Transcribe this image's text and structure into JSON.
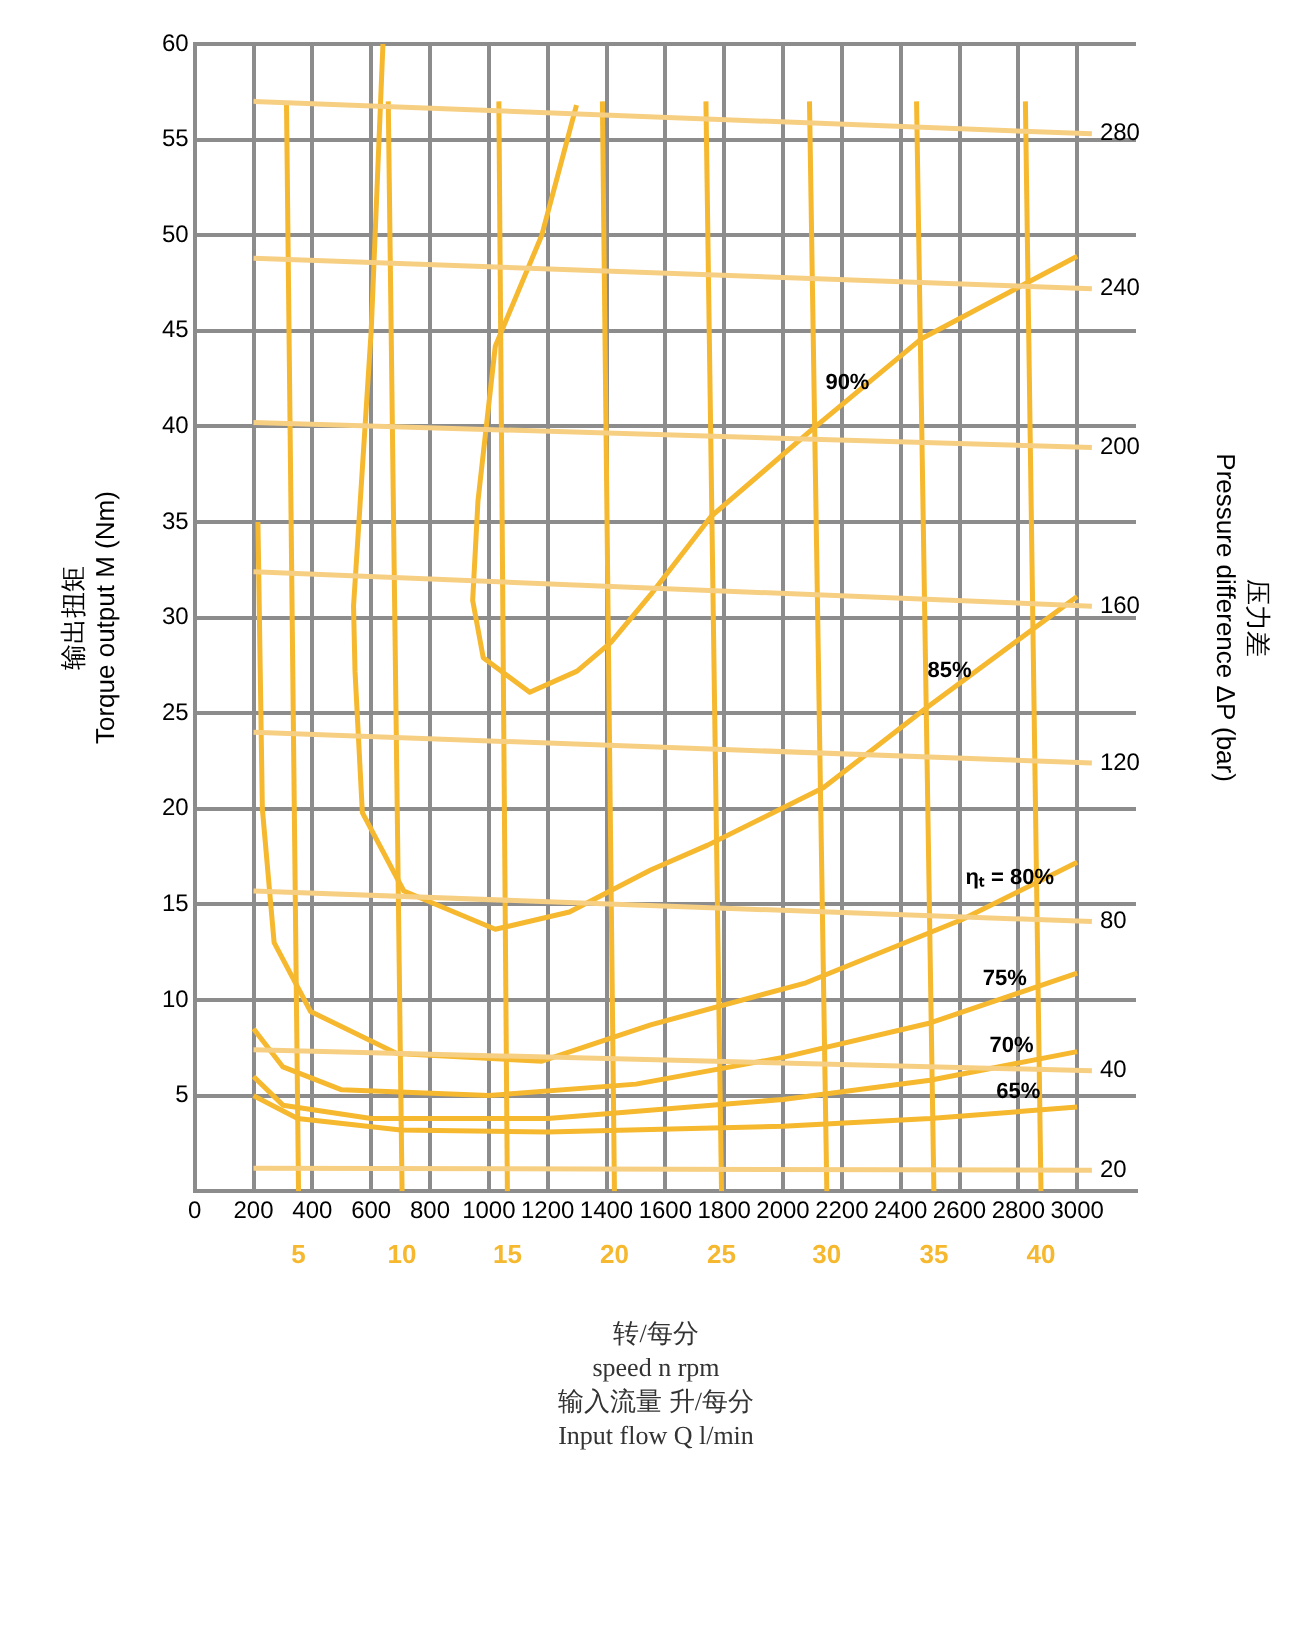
{
  "chart_data": {
    "type": "line",
    "xlabel": "转/每分\nspeed n rpm\n输入流量  升/每分\nInput flow Q l/min",
    "ylabel": "输出扭矩\nTorque output M (Nm)",
    "y2label": "压力差\nPressure difference ΔP (bar)",
    "xlim": [
      0,
      3200
    ],
    "xticks": [
      0,
      200,
      400,
      600,
      800,
      1000,
      1200,
      1400,
      1600,
      1800,
      2000,
      2200,
      2400,
      2600,
      2800,
      3000
    ],
    "ylim": [
      0,
      60
    ],
    "yticks": [
      5,
      10,
      15,
      20,
      25,
      30,
      35,
      40,
      45,
      50,
      55,
      60
    ],
    "grid": true,
    "legend": false,
    "marker": "none",
    "line_style": "solid",
    "series": [
      {
        "name": "280",
        "color": "#f7cf83",
        "x": [
          200,
          3050
        ],
        "values": [
          57,
          55.3
        ]
      },
      {
        "name": "240",
        "type": "line",
        "color": "#f7cf83",
        "x": [
          200,
          3050
        ],
        "values": [
          48.8,
          47.2
        ]
      },
      {
        "name": "200",
        "type": "line",
        "color": "#f7cf83",
        "x": [
          200,
          3050
        ],
        "values": [
          40.2,
          38.9
        ]
      },
      {
        "name": "160",
        "type": "line",
        "color": "#f7cf83",
        "x": [
          200,
          3050
        ],
        "values": [
          32.4,
          30.6
        ]
      },
      {
        "name": "120",
        "type": "line",
        "color": "#f7cf83",
        "x": [
          200,
          3050
        ],
        "values": [
          24,
          22.4
        ]
      },
      {
        "name": "80",
        "type": "line",
        "color": "#f7cf83",
        "x": [
          200,
          3050
        ],
        "values": [
          15.7,
          14.1
        ]
      },
      {
        "name": "40",
        "type": "line",
        "color": "#f7cf83",
        "x": [
          200,
          3050
        ],
        "values": [
          7.4,
          6.3
        ]
      },
      {
        "name": "20",
        "type": "line",
        "color": "#f7cf83",
        "x": [
          200,
          3050
        ],
        "values": [
          1.2,
          1.1
        ]
      },
      {
        "name": "5",
        "type": "line",
        "color": "#f5b82e",
        "x": [
          312,
          353
        ],
        "values": [
          57,
          0
        ]
      },
      {
        "name": "10",
        "type": "line",
        "color": "#f5b82e",
        "x": [
          658,
          705
        ],
        "values": [
          57,
          0
        ]
      },
      {
        "name": "15",
        "type": "line",
        "color": "#f5b82e",
        "x": [
          1034,
          1063
        ],
        "values": [
          57,
          0
        ]
      },
      {
        "name": "20",
        "type": "line",
        "color": "#f5b82e",
        "x": [
          1386,
          1427
        ],
        "values": [
          57,
          0
        ]
      },
      {
        "name": "25",
        "type": "line",
        "color": "#f5b82e",
        "x": [
          1738,
          1791
        ],
        "values": [
          57,
          0
        ]
      },
      {
        "name": "30",
        "type": "line",
        "color": "#f5b82e",
        "x": [
          2090,
          2149
        ],
        "values": [
          57,
          0
        ]
      },
      {
        "name": "35",
        "type": "line",
        "color": "#f5b82e",
        "x": [
          2454,
          2513
        ],
        "values": [
          57,
          0
        ]
      },
      {
        "name": "40",
        "type": "line",
        "color": "#f5b82e",
        "x": [
          2824,
          2877
        ],
        "values": [
          57,
          0
        ]
      },
      {
        "type": "line",
        "color": "#f5b82e",
        "x": [
          1298,
          1180,
          1022,
          963,
          945,
          981,
          1139,
          1300,
          1415,
          1550,
          1756,
          2096,
          2472,
          3000
        ],
        "values": [
          56.8,
          50,
          44.2,
          36.1,
          30.9,
          27.9,
          26.1,
          27.2,
          28.7,
          31.2,
          35.3,
          39.8,
          44.6,
          48.9
        ]
      },
      {
        "type": "line",
        "color": "#f5b82e",
        "x": [
          640,
          600,
          540,
          545,
          570,
          711,
          1022,
          1274,
          1550,
          1744,
          2137,
          2489,
          3000
        ],
        "values": [
          60,
          45,
          30.6,
          27.2,
          19.8,
          15.7,
          13.7,
          14.6,
          16.8,
          18.1,
          21.1,
          25.3,
          31.1
        ]
      },
      {
        "type": "line",
        "color": "#f5b82e",
        "x": [
          215,
          230,
          270,
          394,
          687,
          1180,
          1550,
          2078,
          2607,
          3000
        ],
        "values": [
          35,
          20,
          13,
          9.4,
          7.2,
          6.8,
          8.7,
          10.9,
          14.2,
          17.2
        ]
      },
      {
        "type": "line",
        "color": "#f5b82e",
        "x": [
          200,
          300,
          500,
          1000,
          1500,
          2000,
          2500,
          3000
        ],
        "values": [
          8.5,
          6.5,
          5.3,
          5,
          5.6,
          7,
          8.8,
          11.4
        ]
      },
      {
        "type": "line",
        "color": "#f5b82e",
        "x": [
          200,
          300,
          600,
          1200,
          2000,
          2500,
          3000
        ],
        "values": [
          6,
          4.5,
          3.8,
          3.8,
          4.8,
          5.8,
          7.3
        ]
      },
      {
        "type": "line",
        "color": "#f5b82e",
        "x": [
          200,
          350,
          700,
          1200,
          2000,
          2500,
          3000
        ],
        "values": [
          5,
          3.8,
          3.2,
          3.1,
          3.4,
          3.8,
          4.4
        ]
      }
    ],
    "annotations": [
      {
        "text": "90%",
        "x": 2219,
        "y": 41.3
      },
      {
        "text": "85%",
        "x": 2566,
        "y": 26.2
      },
      {
        "text": "ηₜ = 80%",
        "x": 2771,
        "y": 15.4
      },
      {
        "text": "75%",
        "x": 2754,
        "y": 10.1
      },
      {
        "text": "70%",
        "x": 2777,
        "y": 6.6
      },
      {
        "text": "65%",
        "x": 2800,
        "y": 4.2
      }
    ]
  }
}
